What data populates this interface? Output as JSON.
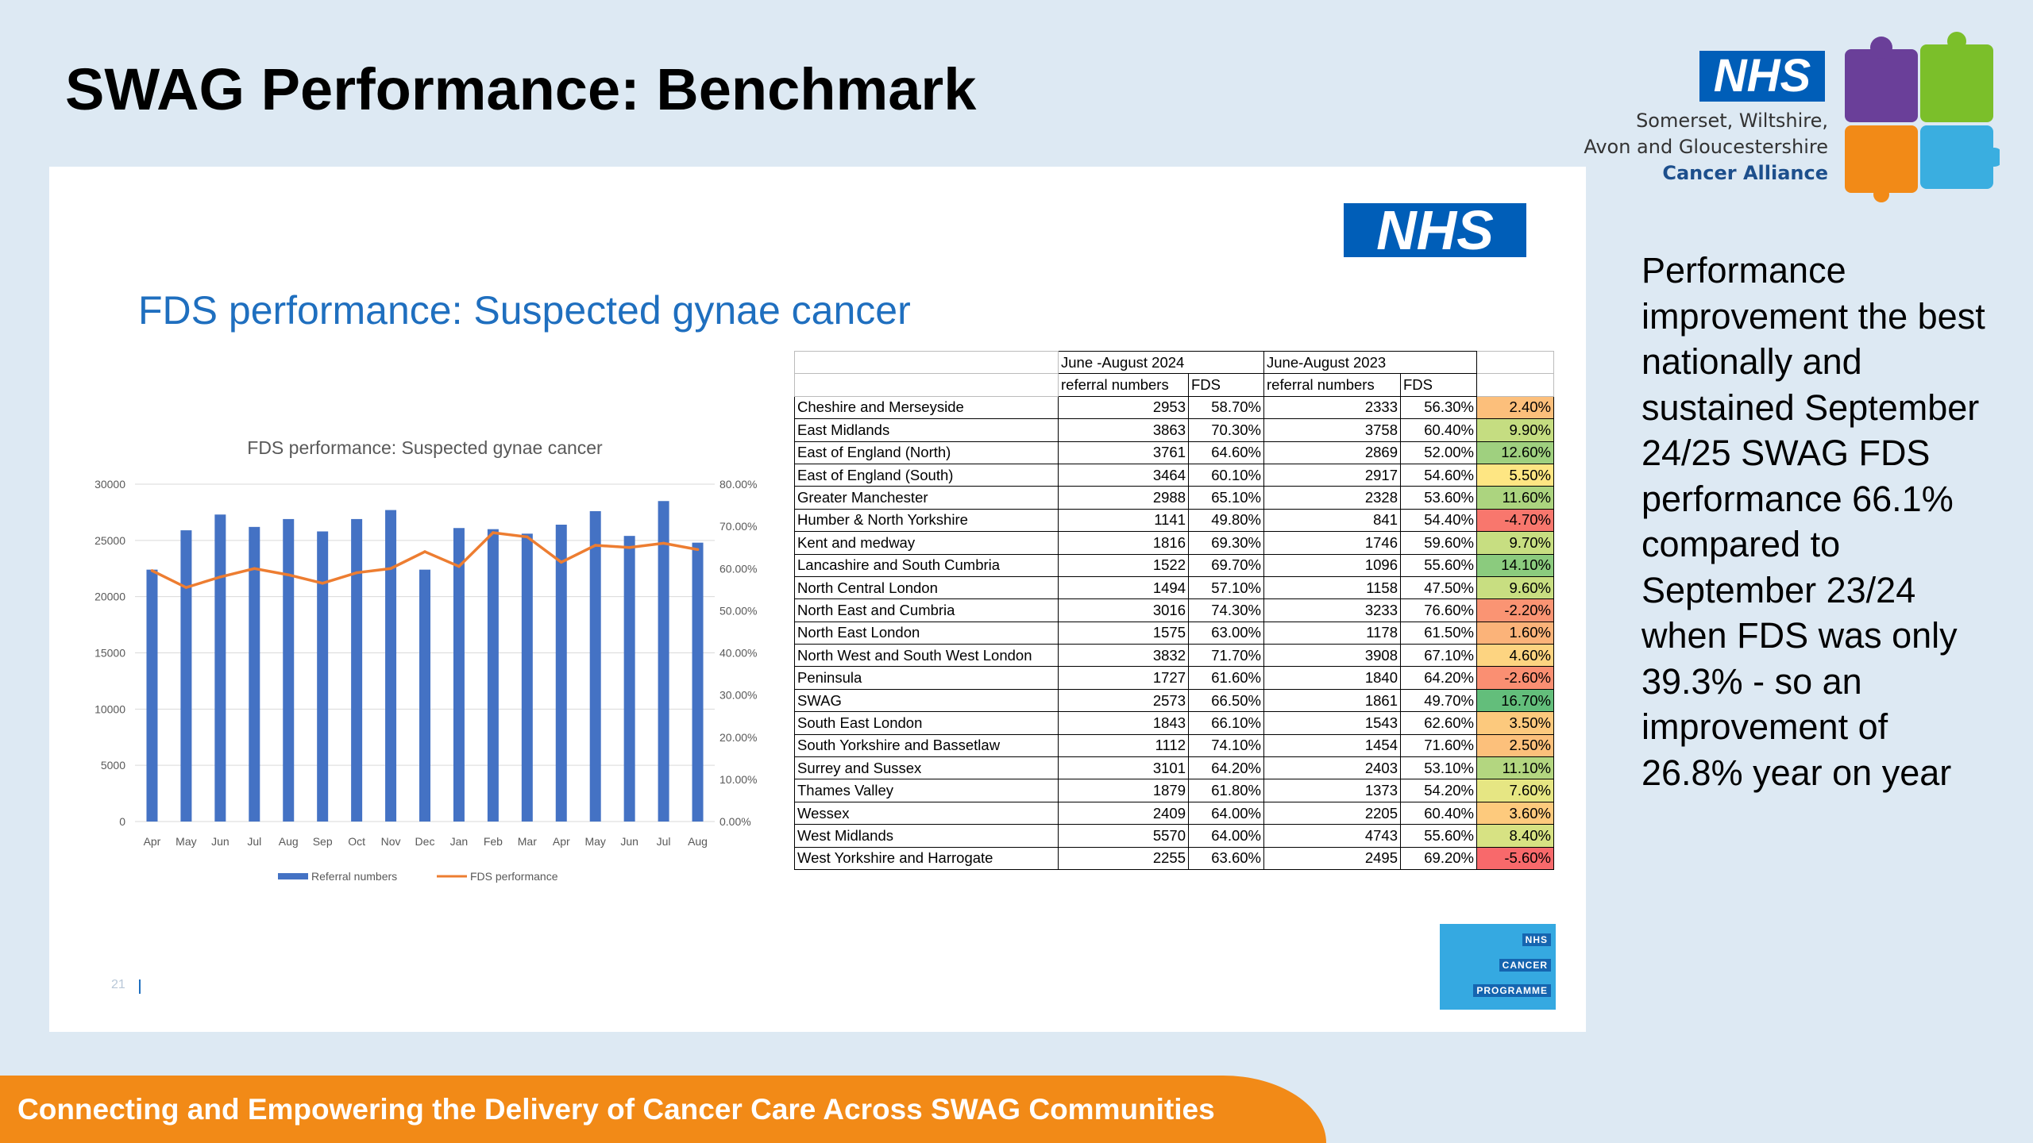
{
  "slide": {
    "title": "SWAG Performance: Benchmark",
    "side_text": "Performance improvement the best nationally and sustained September 24/25 SWAG FDS performance 66.1% compared to September 23/24 when FDS was only 39.3% - so an improvement of 26.8% year on year",
    "footer": "Connecting and Empowering the Delivery of Cancer Care Across SWAG Communities"
  },
  "logo": {
    "nhs": "NHS",
    "line1": "Somerset, Wiltshire,",
    "line2": "Avon and Gloucestershire",
    "line3": "Cancer Alliance",
    "colors": {
      "purple": "#6a3f99",
      "green": "#7bbf2a",
      "orange": "#f28a17",
      "blue": "#3aaee0",
      "nhs_blue": "#005eb8"
    }
  },
  "panel": {
    "nhs": "NHS",
    "title": "FDS performance: Suspected gynae cancer",
    "page_number": "21",
    "programme_logo": [
      "NHS",
      "CANCER",
      "PROGRAMME"
    ]
  },
  "chart_data": {
    "type": "bar",
    "title": "FDS performance: Suspected gynae cancer",
    "categories": [
      "Apr",
      "May",
      "Jun",
      "Jul",
      "Aug",
      "Sep",
      "Oct",
      "Nov",
      "Dec",
      "Jan",
      "Feb",
      "Mar",
      "Apr",
      "May",
      "Jun",
      "Jul",
      "Aug"
    ],
    "y_ticks": [
      "0",
      "5000",
      "10000",
      "15000",
      "20000",
      "25000",
      "30000"
    ],
    "y2_ticks": [
      "0.00%",
      "10.00%",
      "20.00%",
      "30.00%",
      "40.00%",
      "50.00%",
      "60.00%",
      "70.00%",
      "80.00%"
    ],
    "ylim": [
      0,
      30000
    ],
    "y2lim": [
      0,
      80
    ],
    "grid": true,
    "legend_position": "bottom",
    "series": [
      {
        "name": "Referral numbers",
        "type": "bar",
        "axis": "left",
        "color": "#4472c4",
        "values": [
          22400,
          25900,
          27300,
          26200,
          26900,
          25800,
          26900,
          27700,
          22400,
          26100,
          26000,
          25600,
          26400,
          27600,
          25400,
          28500,
          24800
        ]
      },
      {
        "name": "FDS performance",
        "type": "line",
        "axis": "right",
        "color": "#ed7d31",
        "values": [
          59.5,
          55.5,
          58.0,
          60.0,
          58.5,
          56.5,
          59.0,
          60.0,
          64.0,
          60.5,
          68.5,
          67.5,
          61.5,
          65.5,
          65.0,
          66.0,
          64.5
        ]
      }
    ]
  },
  "table": {
    "period_2024": "June -August 2024",
    "period_2023": "June-August 2023",
    "col_referrals": "referral numbers",
    "col_fds": "FDS",
    "change_colors": {
      "high": "#63be7b",
      "mid": "#ffeb84",
      "low": "#f8696b"
    },
    "rows": [
      {
        "region": "Cheshire and Merseyside",
        "ref24": "2953",
        "fds24": "58.70%",
        "ref23": "2333",
        "fds23": "56.30%",
        "change": "2.40%",
        "color": "#fcbf7b"
      },
      {
        "region": "East Midlands",
        "ref24": "3863",
        "fds24": "70.30%",
        "ref23": "3758",
        "fds23": "60.40%",
        "change": "9.90%",
        "color": "#c5dd81"
      },
      {
        "region": "East of England (North)",
        "ref24": "3761",
        "fds24": "64.60%",
        "ref23": "2869",
        "fds23": "52.00%",
        "change": "12.60%",
        "color": "#9fd07f"
      },
      {
        "region": "East of England (South)",
        "ref24": "3464",
        "fds24": "60.10%",
        "ref23": "2917",
        "fds23": "54.60%",
        "change": "5.50%",
        "color": "#fee683"
      },
      {
        "region": "Greater Manchester",
        "ref24": "2988",
        "fds24": "65.10%",
        "ref23": "2328",
        "fds23": "53.60%",
        "change": "11.60%",
        "color": "#acd47f"
      },
      {
        "region": "Humber & North Yorkshire",
        "ref24": "1141",
        "fds24": "49.80%",
        "ref23": "841",
        "fds23": "54.40%",
        "change": "-4.70%",
        "color": "#f8776d"
      },
      {
        "region": "Kent and medway",
        "ref24": "1816",
        "fds24": "69.30%",
        "ref23": "1746",
        "fds23": "59.60%",
        "change": "9.70%",
        "color": "#c7de81"
      },
      {
        "region": "Lancashire and South Cumbria",
        "ref24": "1522",
        "fds24": "69.70%",
        "ref23": "1096",
        "fds23": "55.60%",
        "change": "14.10%",
        "color": "#8bcb7e"
      },
      {
        "region": "North Central London",
        "ref24": "1494",
        "fds24": "57.10%",
        "ref23": "1158",
        "fds23": "47.50%",
        "change": "9.60%",
        "color": "#c8de81"
      },
      {
        "region": "North East and Cumbria",
        "ref24": "3016",
        "fds24": "74.30%",
        "ref23": "3233",
        "fds23": "76.60%",
        "change": "-2.20%",
        "color": "#fa9473"
      },
      {
        "region": "North East London",
        "ref24": "1575",
        "fds24": "63.00%",
        "ref23": "1178",
        "fds23": "61.50%",
        "change": "1.60%",
        "color": "#fbb379"
      },
      {
        "region": "North West and South West London",
        "ref24": "3832",
        "fds24": "71.70%",
        "ref23": "3908",
        "fds23": "67.10%",
        "change": "4.60%",
        "color": "#fdd481"
      },
      {
        "region": "Peninsula",
        "ref24": "1727",
        "fds24": "61.60%",
        "ref23": "1840",
        "fds23": "64.20%",
        "change": "-2.60%",
        "color": "#fa8f72"
      },
      {
        "region": "SWAG",
        "ref24": "2573",
        "fds24": "66.50%",
        "ref23": "1861",
        "fds23": "49.70%",
        "change": "16.70%",
        "color": "#63be7b"
      },
      {
        "region": "South East London",
        "ref24": "1843",
        "fds24": "66.10%",
        "ref23": "1543",
        "fds23": "62.60%",
        "change": "3.50%",
        "color": "#fcc97d"
      },
      {
        "region": "South Yorkshire and Bassetlaw",
        "ref24": "1112",
        "fds24": "74.10%",
        "ref23": "1454",
        "fds23": "71.60%",
        "change": "2.50%",
        "color": "#fcc07b"
      },
      {
        "region": "Surrey and Sussex",
        "ref24": "3101",
        "fds24": "64.20%",
        "ref23": "2403",
        "fds23": "53.10%",
        "change": "11.10%",
        "color": "#b3d680"
      },
      {
        "region": "Thames Valley",
        "ref24": "1879",
        "fds24": "61.80%",
        "ref23": "1373",
        "fds23": "54.20%",
        "change": "7.60%",
        "color": "#e6e683"
      },
      {
        "region": "Wessex",
        "ref24": "2409",
        "fds24": "64.00%",
        "ref23": "2205",
        "fds23": "60.40%",
        "change": "3.60%",
        "color": "#fdca7d"
      },
      {
        "region": "West Midlands",
        "ref24": "5570",
        "fds24": "64.00%",
        "ref23": "4743",
        "fds23": "55.60%",
        "change": "8.40%",
        "color": "#d7e283"
      },
      {
        "region": "West Yorkshire and Harrogate",
        "ref24": "2255",
        "fds24": "63.60%",
        "ref23": "2495",
        "fds23": "69.20%",
        "change": "-5.60%",
        "color": "#f8696b"
      }
    ]
  }
}
